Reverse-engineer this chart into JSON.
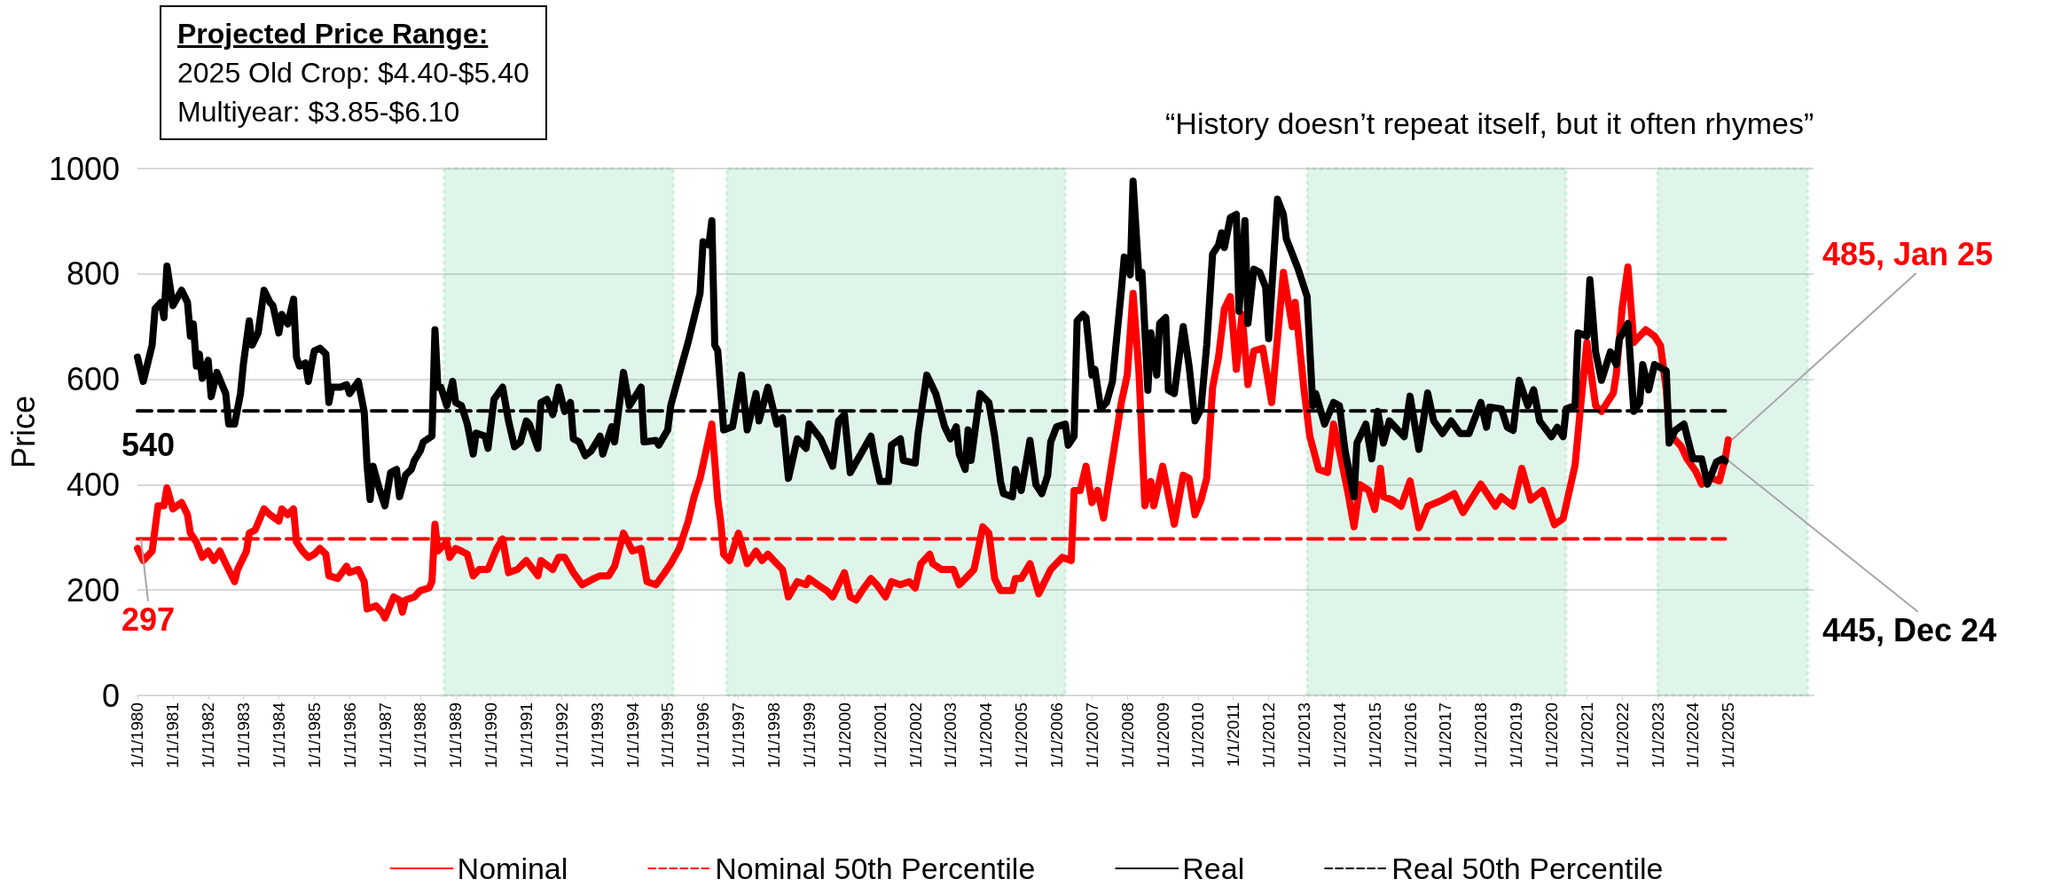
{
  "chart_data": {
    "type": "line",
    "ylabel": "Price",
    "ylim": [
      0,
      1000
    ],
    "yticks": [
      0,
      200,
      400,
      600,
      800,
      1000
    ],
    "xlim": [
      "1980-01",
      "2027-06"
    ],
    "xticks": [
      {
        "value": "1980-01",
        "label": "1/1/1980"
      },
      {
        "value": "1981-01",
        "label": "1/1/1981"
      },
      {
        "value": "1982-01",
        "label": "1/1/1982"
      },
      {
        "value": "1983-01",
        "label": "1/1/1983"
      },
      {
        "value": "1984-01",
        "label": "1/1/1984"
      },
      {
        "value": "1985-01",
        "label": "1/1/1985"
      },
      {
        "value": "1986-01",
        "label": "1/1/1986"
      },
      {
        "value": "1987-01",
        "label": "1/1/1987"
      },
      {
        "value": "1988-01",
        "label": "1/1/1988"
      },
      {
        "value": "1989-01",
        "label": "1/1/1989"
      },
      {
        "value": "1990-01",
        "label": "1/1/1990"
      },
      {
        "value": "1991-01",
        "label": "1/1/1991"
      },
      {
        "value": "1992-01",
        "label": "1/1/1992"
      },
      {
        "value": "1993-01",
        "label": "1/1/1993"
      },
      {
        "value": "1994-01",
        "label": "1/1/1994"
      },
      {
        "value": "1995-01",
        "label": "1/1/1995"
      },
      {
        "value": "1996-01",
        "label": "1/1/1996"
      },
      {
        "value": "1997-01",
        "label": "1/1/1997"
      },
      {
        "value": "1998-01",
        "label": "1/1/1998"
      },
      {
        "value": "1999-01",
        "label": "1/1/1999"
      },
      {
        "value": "2000-01",
        "label": "1/1/2000"
      },
      {
        "value": "2001-01",
        "label": "1/1/2001"
      },
      {
        "value": "2002-01",
        "label": "1/1/2002"
      },
      {
        "value": "2003-01",
        "label": "1/1/2003"
      },
      {
        "value": "2004-01",
        "label": "1/1/2004"
      },
      {
        "value": "2005-01",
        "label": "1/1/2005"
      },
      {
        "value": "2006-01",
        "label": "1/1/2006"
      },
      {
        "value": "2007-01",
        "label": "1/1/2007"
      },
      {
        "value": "2008-01",
        "label": "1/1/2008"
      },
      {
        "value": "2009-01",
        "label": "1/1/2009"
      },
      {
        "value": "2010-01",
        "label": "1/1/2010"
      },
      {
        "value": "2011-01",
        "label": "1/1/2011"
      },
      {
        "value": "2012-01",
        "label": "1/1/2012"
      },
      {
        "value": "2013-01",
        "label": "1/1/2013"
      },
      {
        "value": "2014-01",
        "label": "1/1/2014"
      },
      {
        "value": "2015-01",
        "label": "1/1/2015"
      },
      {
        "value": "2016-01",
        "label": "1/1/2016"
      },
      {
        "value": "2017-01",
        "label": "1/1/2017"
      },
      {
        "value": "2018-01",
        "label": "1/1/2018"
      },
      {
        "value": "2019-01",
        "label": "1/1/2019"
      },
      {
        "value": "2020-01",
        "label": "1/1/2020"
      },
      {
        "value": "2021-01",
        "label": "1/1/2021"
      },
      {
        "value": "2022-01",
        "label": "1/1/2022"
      },
      {
        "value": "2023-01",
        "label": "1/1/2023"
      },
      {
        "value": "2024-01",
        "label": "1/1/2024"
      },
      {
        "value": "2025-01",
        "label": "1/1/2025"
      }
    ],
    "grid": "y",
    "legend": "bottom",
    "marker": "none",
    "line_style": "solid",
    "series": [
      {
        "name": "Nominal",
        "color": "#ff0000",
        "x": [
          "1980-01",
          "1980-03",
          "1980-06",
          "1980-08",
          "1980-10",
          "1980-11",
          "1981-01",
          "1981-04",
          "1981-06",
          "1981-07",
          "1981-09",
          "1981-11",
          "1982-01",
          "1982-03",
          "1982-05",
          "1982-07",
          "1982-10",
          "1982-11",
          "1983-02",
          "1983-03",
          "1983-05",
          "1983-08",
          "1983-10",
          "1984-01",
          "1984-02",
          "1984-04",
          "1984-06",
          "1984-07",
          "1984-09",
          "1984-11",
          "1985-01",
          "1985-03",
          "1985-05",
          "1985-06",
          "1985-09",
          "1985-12",
          "1986-01",
          "1986-04",
          "1986-06",
          "1986-07",
          "1986-10",
          "1986-12",
          "1987-01",
          "1987-04",
          "1987-06",
          "1987-07",
          "1987-08",
          "1987-11",
          "1988-01",
          "1988-04",
          "1988-05",
          "1988-06",
          "1988-07",
          "1988-10",
          "1988-11",
          "1989-01",
          "1989-03",
          "1989-05",
          "1989-07",
          "1989-09",
          "1989-12",
          "1990-03",
          "1990-05",
          "1990-07",
          "1990-10",
          "1991-01",
          "1991-05",
          "1991-06",
          "1991-10",
          "1991-12",
          "1992-02",
          "1992-05",
          "1992-08",
          "1992-12",
          "1993-02",
          "1993-05",
          "1993-07",
          "1993-10",
          "1994-01",
          "1994-04",
          "1994-06",
          "1994-09",
          "1994-12",
          "1995-02",
          "1995-05",
          "1995-08",
          "1995-10",
          "1995-12",
          "1996-02",
          "1996-04",
          "1996-06",
          "1996-07",
          "1996-08",
          "1996-10",
          "1997-01",
          "1997-04",
          "1997-07",
          "1997-09",
          "1997-11",
          "1998-02",
          "1998-04",
          "1998-06",
          "1998-09",
          "1998-12",
          "1999-01",
          "1999-04",
          "1999-07",
          "1999-09",
          "2000-01",
          "2000-03",
          "2000-05",
          "2000-07",
          "2000-10",
          "2000-12",
          "2001-03",
          "2001-05",
          "2001-08",
          "2001-11",
          "2002-01",
          "2002-03",
          "2002-06",
          "2002-07",
          "2002-10",
          "2003-02",
          "2003-04",
          "2003-07",
          "2003-09",
          "2003-12",
          "2004-02",
          "2004-04",
          "2004-06",
          "2004-10",
          "2004-11",
          "2005-01",
          "2005-04",
          "2005-07",
          "2005-11",
          "2006-03",
          "2006-06",
          "2006-07",
          "2006-09",
          "2006-11",
          "2007-01",
          "2007-03",
          "2007-05",
          "2007-06",
          "2007-11",
          "2008-01",
          "2008-03",
          "2008-05",
          "2008-07",
          "2008-09",
          "2008-10",
          "2009-01",
          "2009-05",
          "2009-08",
          "2009-10",
          "2009-12",
          "2010-02",
          "2010-04",
          "2010-06",
          "2010-08",
          "2010-10",
          "2010-12",
          "2011-02",
          "2011-04",
          "2011-06",
          "2011-08",
          "2011-11",
          "2012-02",
          "2012-06",
          "2012-09",
          "2012-10",
          "2013-01",
          "2013-03",
          "2013-06",
          "2013-09",
          "2013-11",
          "2014-01",
          "2014-04",
          "2014-06",
          "2014-08",
          "2014-11",
          "2015-01",
          "2015-03",
          "2015-04",
          "2015-07",
          "2015-10",
          "2016-01",
          "2016-04",
          "2016-07",
          "2016-12",
          "2017-04",
          "2017-07",
          "2018-01",
          "2018-06",
          "2018-08",
          "2018-12",
          "2019-03",
          "2019-06",
          "2019-10",
          "2020-02",
          "2020-05",
          "2020-09",
          "2020-11",
          "2021-01",
          "2021-04",
          "2021-06",
          "2021-10",
          "2021-11",
          "2022-01",
          "2022-03",
          "2022-05",
          "2022-07",
          "2022-09",
          "2022-12",
          "2023-02",
          "2023-04",
          "2023-05",
          "2023-09",
          "2023-11",
          "2024-02",
          "2024-04",
          "2024-07",
          "2024-10",
          "2024-12",
          "2025-01"
        ],
        "values": [
          279,
          256,
          274,
          360,
          360,
          394,
          354,
          366,
          343,
          308,
          291,
          262,
          274,
          256,
          274,
          250,
          216,
          239,
          274,
          308,
          314,
          354,
          343,
          331,
          354,
          343,
          354,
          291,
          274,
          262,
          268,
          279,
          268,
          227,
          222,
          245,
          233,
          239,
          216,
          164,
          170,
          158,
          147,
          187,
          181,
          158,
          181,
          187,
          199,
          204,
          216,
          325,
          274,
          291,
          262,
          279,
          274,
          268,
          227,
          239,
          239,
          279,
          297,
          233,
          239,
          256,
          227,
          256,
          239,
          262,
          262,
          233,
          210,
          222,
          227,
          227,
          245,
          308,
          274,
          279,
          216,
          210,
          233,
          250,
          279,
          331,
          377,
          412,
          464,
          515,
          371,
          331,
          268,
          256,
          308,
          250,
          274,
          256,
          268,
          250,
          239,
          187,
          216,
          210,
          222,
          210,
          199,
          187,
          233,
          187,
          181,
          199,
          222,
          210,
          187,
          216,
          210,
          216,
          204,
          250,
          268,
          250,
          239,
          239,
          210,
          227,
          239,
          320,
          308,
          222,
          199,
          199,
          222,
          222,
          250,
          193,
          239,
          262,
          256,
          389,
          389,
          435,
          366,
          389,
          337,
          377,
          556,
          608,
          763,
          613,
          360,
          406,
          360,
          435,
          325,
          418,
          412,
          343,
          371,
          412,
          585,
          642,
          734,
          757,
          619,
          723,
          590,
          654,
          659,
          556,
          803,
          700,
          746,
          579,
          492,
          429,
          423,
          515,
          464,
          383,
          320,
          400,
          389,
          353,
          431,
          377,
          371,
          359,
          407,
          318,
          359,
          371,
          383,
          347,
          401,
          359,
          377,
          359,
          431,
          371,
          389,
          324,
          336,
          437,
          556,
          670,
          550,
          539,
          574,
          610,
          736,
          813,
          670,
          682,
          694,
          682,
          664,
          580,
          497,
          473,
          449,
          425,
          401,
          413,
          407,
          450,
          485
        ]
      },
      {
        "name": "Nominal 50th Percentile",
        "color": "#ff0000",
        "line_style": "dashed",
        "x": [
          "1980-01",
          "2024-12"
        ],
        "values": [
          297,
          297
        ]
      },
      {
        "name": "Real",
        "color": "#000000",
        "x": [
          "1980-01",
          "1980-03",
          "1980-06",
          "1980-07",
          "1980-09",
          "1980-10",
          "1980-11",
          "1981-01",
          "1981-04",
          "1981-06",
          "1981-07",
          "1981-08",
          "1981-09",
          "1981-10",
          "1981-11",
          "1982-01",
          "1982-02",
          "1982-04",
          "1982-07",
          "1982-08",
          "1982-10",
          "1982-12",
          "1983-01",
          "1983-03",
          "1983-04",
          "1983-06",
          "1983-08",
          "1983-10",
          "1983-11",
          "1984-01",
          "1984-02",
          "1984-04",
          "1984-06",
          "1984-07",
          "1984-08",
          "1984-10",
          "1984-11",
          "1985-01",
          "1985-03",
          "1985-05",
          "1985-06",
          "1985-07",
          "1985-10",
          "1985-12",
          "1986-01",
          "1986-04",
          "1986-06",
          "1986-07",
          "1986-08",
          "1986-09",
          "1986-11",
          "1987-01",
          "1987-03",
          "1987-05",
          "1987-06",
          "1987-08",
          "1987-10",
          "1987-11",
          "1988-01",
          "1988-02",
          "1988-05",
          "1988-06",
          "1988-07",
          "1988-08",
          "1988-10",
          "1988-12",
          "1989-01",
          "1989-03",
          "1989-05",
          "1989-07",
          "1989-08",
          "1989-11",
          "1989-12",
          "1990-02",
          "1990-05",
          "1990-07",
          "1990-09",
          "1990-11",
          "1991-01",
          "1991-02",
          "1991-05",
          "1991-06",
          "1991-08",
          "1991-10",
          "1991-12",
          "1992-02",
          "1992-04",
          "1992-05",
          "1992-07",
          "1992-09",
          "1992-11",
          "1993-02",
          "1993-03",
          "1993-06",
          "1993-07",
          "1993-10",
          "1993-12",
          "1994-04",
          "1994-05",
          "1994-09",
          "1994-10",
          "1995-01",
          "1995-02",
          "1995-06",
          "1995-08",
          "1995-10",
          "1995-12",
          "1996-01",
          "1996-03",
          "1996-04",
          "1996-05",
          "1996-06",
          "1996-08",
          "1996-11",
          "1997-02",
          "1997-04",
          "1997-07",
          "1997-08",
          "1997-11",
          "1998-02",
          "1998-04",
          "1998-06",
          "1998-09",
          "1998-12",
          "1999-01",
          "1999-05",
          "1999-09",
          "1999-11",
          "2000-01",
          "2000-03",
          "2000-10",
          "2000-11",
          "2001-01",
          "2001-04",
          "2001-05",
          "2001-08",
          "2001-09",
          "2002-01",
          "2002-02",
          "2002-05",
          "2002-08",
          "2002-11",
          "2003-01",
          "2003-03",
          "2003-04",
          "2003-06",
          "2003-07",
          "2003-08",
          "2003-11",
          "2004-02",
          "2004-04",
          "2004-06",
          "2004-07",
          "2004-10",
          "2004-11",
          "2005-01",
          "2005-04",
          "2005-06",
          "2005-08",
          "2005-10",
          "2005-11",
          "2006-01",
          "2006-04",
          "2006-05",
          "2006-07",
          "2006-08",
          "2006-10",
          "2006-11",
          "2007-01",
          "2007-02",
          "2007-04",
          "2007-06",
          "2007-08",
          "2007-11",
          "2007-12",
          "2008-02",
          "2008-03",
          "2008-05",
          "2008-06",
          "2008-08",
          "2008-09",
          "2008-11",
          "2008-12",
          "2009-02",
          "2009-03",
          "2009-05",
          "2009-08",
          "2009-10",
          "2009-12",
          "2010-02",
          "2010-04",
          "2010-06",
          "2010-08",
          "2010-09",
          "2010-10",
          "2010-12",
          "2011-02",
          "2011-03",
          "2011-05",
          "2011-06",
          "2011-08",
          "2011-10",
          "2011-12",
          "2012-01",
          "2012-04",
          "2012-06",
          "2012-07",
          "2012-09",
          "2012-11",
          "2013-02",
          "2013-04",
          "2013-05",
          "2013-08",
          "2013-11",
          "2014-01",
          "2014-03",
          "2014-06",
          "2014-07",
          "2014-10",
          "2014-12",
          "2015-02",
          "2015-04",
          "2015-06",
          "2015-11",
          "2016-01",
          "2016-04",
          "2016-07",
          "2016-09",
          "2016-12",
          "2017-03",
          "2017-06",
          "2017-09",
          "2018-01",
          "2018-03",
          "2018-04",
          "2018-08",
          "2018-10",
          "2018-12",
          "2019-02",
          "2019-05",
          "2019-07",
          "2019-09",
          "2020-01",
          "2020-03",
          "2020-05",
          "2020-06",
          "2020-09",
          "2020-10",
          "2021-01",
          "2021-02",
          "2021-04",
          "2021-06",
          "2021-09",
          "2021-11",
          "2021-12",
          "2022-03",
          "2022-05",
          "2022-07",
          "2022-08",
          "2022-10",
          "2022-12",
          "2023-04",
          "2023-05",
          "2023-07",
          "2023-10",
          "2024-01",
          "2024-04",
          "2024-06",
          "2024-09",
          "2024-11",
          "2024-12"
        ],
        "values": [
          642,
          596,
          665,
          734,
          746,
          717,
          815,
          740,
          769,
          746,
          682,
          705,
          625,
          648,
          602,
          636,
          567,
          613,
          573,
          515,
          515,
          573,
          631,
          711,
          665,
          688,
          769,
          746,
          740,
          688,
          723,
          705,
          752,
          642,
          625,
          631,
          596,
          654,
          659,
          648,
          556,
          585,
          585,
          590,
          573,
          596,
          538,
          435,
          372,
          435,
          394,
          360,
          423,
          429,
          377,
          418,
          429,
          446,
          464,
          481,
          492,
          694,
          585,
          585,
          550,
          596,
          556,
          550,
          515,
          458,
          498,
          492,
          469,
          562,
          585,
          521,
          472,
          481,
          521,
          515,
          469,
          556,
          562,
          533,
          585,
          539,
          556,
          487,
          481,
          455,
          464,
          492,
          458,
          510,
          481,
          613,
          550,
          585,
          481,
          484,
          475,
          504,
          550,
          631,
          671,
          717,
          763,
          861,
          855,
          901,
          665,
          654,
          504,
          510,
          608,
          504,
          573,
          521,
          585,
          515,
          527,
          412,
          487,
          469,
          515,
          487,
          435,
          521,
          533,
          423,
          492,
          458,
          406,
          406,
          475,
          487,
          446,
          441,
          498,
          608,
          573,
          510,
          487,
          510,
          458,
          429,
          504,
          446,
          573,
          556,
          492,
          406,
          383,
          377,
          429,
          389,
          484,
          400,
          383,
          418,
          481,
          510,
          515,
          475,
          492,
          711,
          723,
          717,
          608,
          619,
          544,
          556,
          596,
          769,
          832,
          798,
          976,
          792,
          803,
          579,
          688,
          608,
          706,
          717,
          579,
          573,
          700,
          625,
          521,
          544,
          665,
          838,
          855,
          878,
          850,
          907,
          913,
          729,
          901,
          706,
          809,
          803,
          775,
          677,
          942,
          913,
          867,
          838,
          809,
          757,
          550,
          573,
          515,
          556,
          550,
          464,
          377,
          479,
          515,
          449,
          539,
          479,
          521,
          491,
          568,
          467,
          574,
          521,
          497,
          521,
          497,
          497,
          556,
          509,
          547,
          544,
          509,
          503,
          598,
          550,
          580,
          521,
          491,
          509,
          491,
          544,
          550,
          688,
          682,
          789,
          652,
          598,
          652,
          628,
          676,
          706,
          539,
          556,
          628,
          580,
          628,
          616,
          479,
          503,
          515,
          449,
          449,
          401,
          443,
          449,
          445
        ]
      },
      {
        "name": "Real 50th Percentile",
        "color": "#000000",
        "line_style": "dashed",
        "x": [
          "1980-01",
          "2024-12"
        ],
        "values": [
          540,
          540
        ]
      }
    ],
    "bands": [
      {
        "axis": "x",
        "from": "1988-09",
        "to": "1995-03",
        "color": "#00b050"
      },
      {
        "axis": "x",
        "from": "1996-09",
        "to": "2006-04",
        "color": "#00b050"
      },
      {
        "axis": "x",
        "from": "2013-02",
        "to": "2020-06",
        "color": "#00b050"
      },
      {
        "axis": "x",
        "from": "2023-01",
        "to": "2027-04",
        "color": "#00b050"
      }
    ],
    "annotations": [
      "Projected Price Range:",
      "2025 Old Crop: $4.40-$5.40",
      "Multiyear: $3.85-$6.10",
      "“History doesn’t repeat itself, but it often rhymes”",
      {
        "text": "540",
        "x": "1980-01",
        "y": 540
      },
      {
        "text": "297",
        "x": "1980-01",
        "y": 297
      },
      {
        "text": "485, Jan 25",
        "x": "2025-01",
        "y": 485
      },
      {
        "text": "445, Dec 24",
        "x": "2024-12",
        "y": 445
      }
    ]
  }
}
